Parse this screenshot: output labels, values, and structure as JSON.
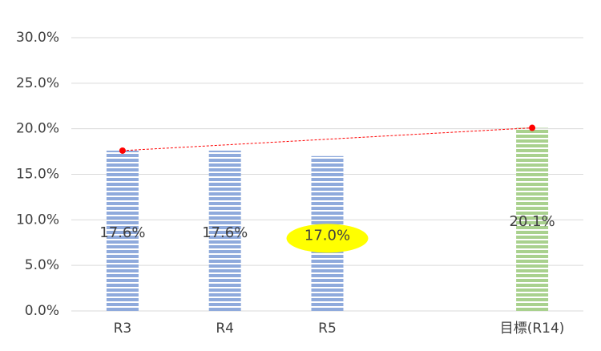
{
  "chart_data": {
    "type": "bar",
    "categories": [
      "R3",
      "R4",
      "R5",
      null,
      "目標(R14)"
    ],
    "values": [
      17.6,
      17.6,
      17.0,
      null,
      20.1
    ],
    "value_labels": [
      "17.6%",
      "17.6%",
      "17.0%",
      null,
      "20.1%"
    ],
    "colors": [
      "#8faadc",
      "#8faadc",
      "#8faadc",
      null,
      "#a9d18e"
    ],
    "highlight": {
      "category": "R5",
      "color": "#ffff00"
    },
    "line": {
      "x": [
        "R3",
        "目標(R14)"
      ],
      "values": [
        17.6,
        20.1
      ],
      "color": "#ff0000"
    },
    "ylim": [
      0,
      30
    ],
    "yticks": [
      {
        "value": 0,
        "label": "0.0%"
      },
      {
        "value": 5,
        "label": "5.0%"
      },
      {
        "value": 10,
        "label": "10.0%"
      },
      {
        "value": 15,
        "label": "15.0%"
      },
      {
        "value": 20,
        "label": "20.0%"
      },
      {
        "value": 25,
        "label": "25.0%"
      },
      {
        "value": 30,
        "label": "30.0%"
      }
    ],
    "grid": true
  }
}
